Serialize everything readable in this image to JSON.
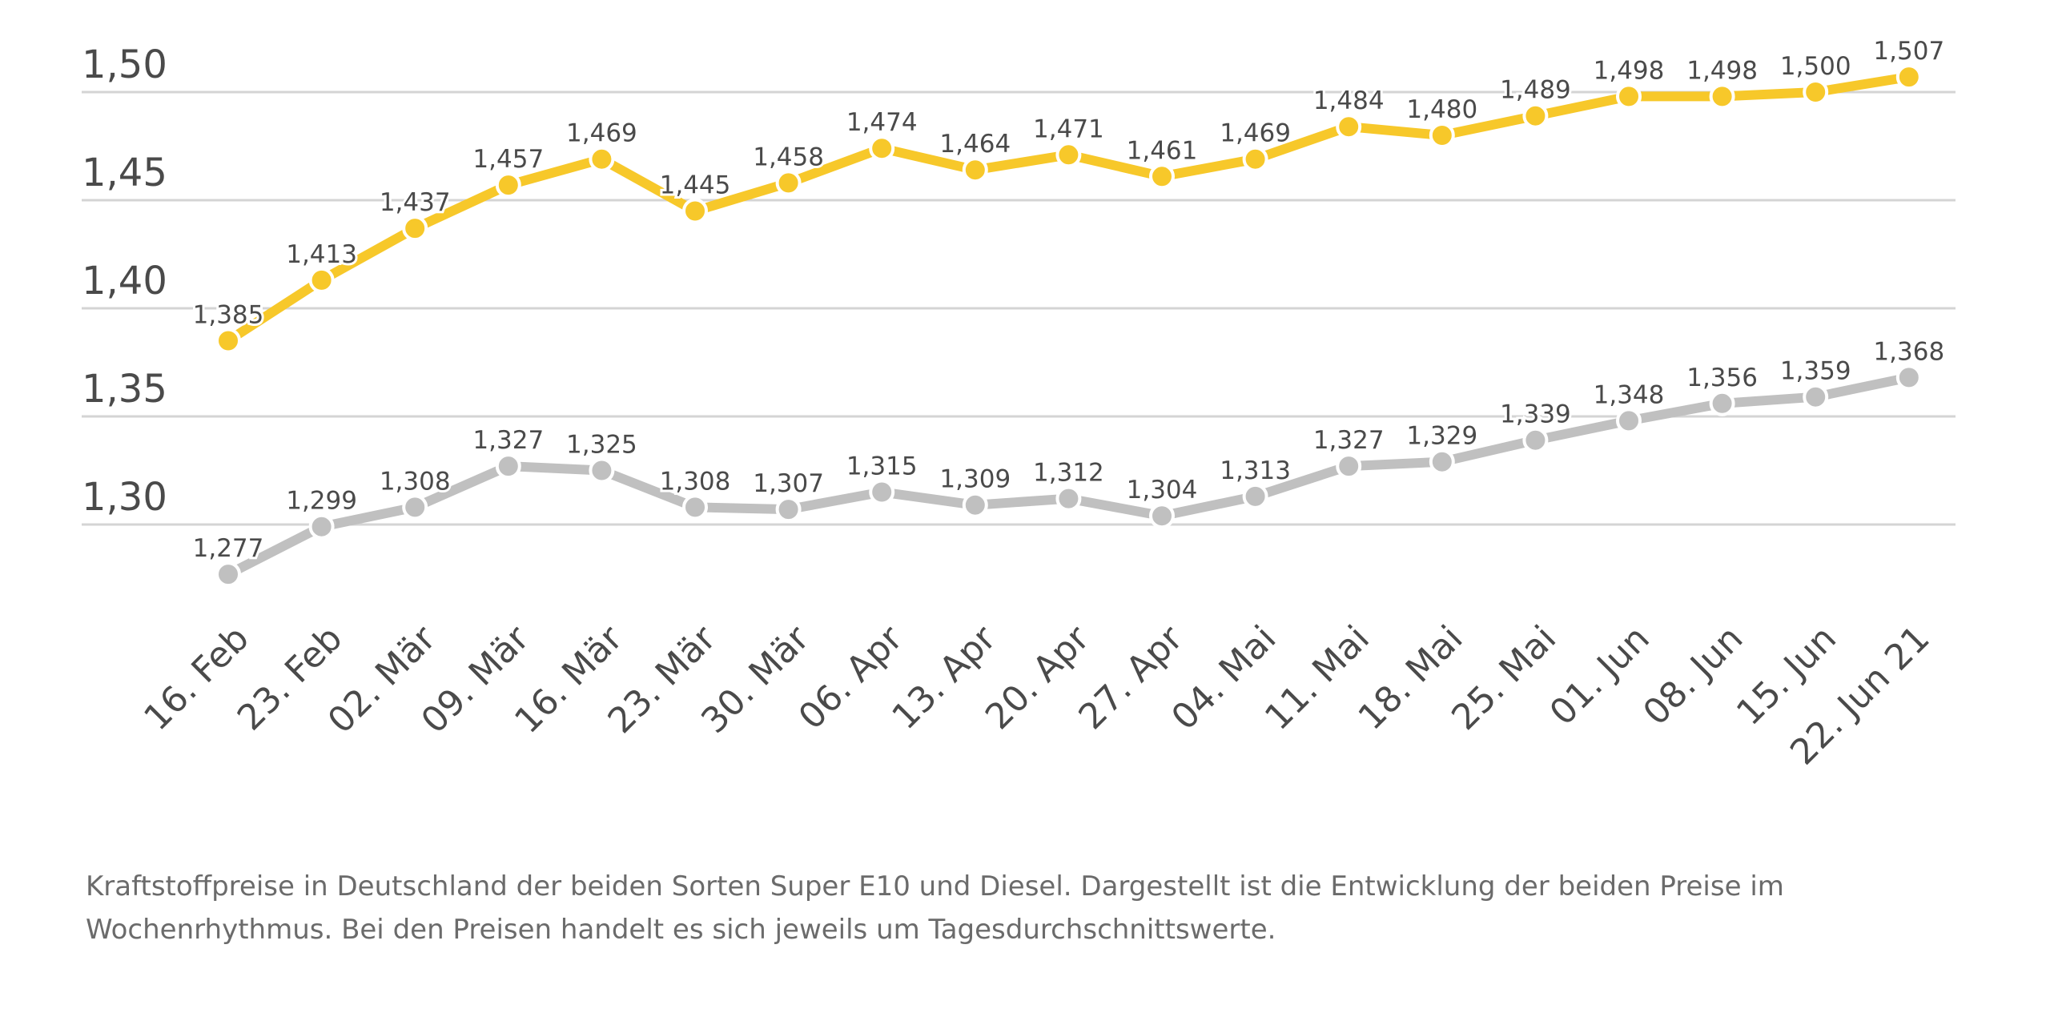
{
  "chart_data": {
    "type": "line",
    "categories": [
      "16. Feb",
      "23. Feb",
      "02. Mär",
      "09. Mär",
      "16. Mär",
      "23. Mär",
      "30. Mär",
      "06. Apr",
      "13. Apr",
      "20. Apr",
      "27. Apr",
      "04. Mai",
      "11. Mai",
      "18. Mai",
      "25. Mai",
      "01. Jun",
      "08. Jun",
      "15. Jun",
      "22. Jun 21"
    ],
    "series": [
      {
        "color": "#f7c82a",
        "values": [
          1.385,
          1.413,
          1.437,
          1.457,
          1.469,
          1.445,
          1.458,
          1.474,
          1.464,
          1.471,
          1.461,
          1.469,
          1.484,
          1.48,
          1.489,
          1.498,
          1.498,
          1.5,
          1.507
        ],
        "labels": [
          "1,385",
          "1,413",
          "1,437",
          "1,457",
          "1,469",
          "1,445",
          "1,458",
          "1,474",
          "1,464",
          "1,471",
          "1,461",
          "1,469",
          "1,484",
          "1,480",
          "1,489",
          "1,498",
          "1,498",
          "1,500",
          "1,507"
        ]
      },
      {
        "color": "#c0c0c0",
        "values": [
          1.277,
          1.299,
          1.308,
          1.327,
          1.325,
          1.308,
          1.307,
          1.315,
          1.309,
          1.312,
          1.304,
          1.313,
          1.327,
          1.329,
          1.339,
          1.348,
          1.356,
          1.359,
          1.368
        ],
        "labels": [
          "1,277",
          "1,299",
          "1,308",
          "1,327",
          "1,325",
          "1,308",
          "1,307",
          "1,315",
          "1,309",
          "1,312",
          "1,304",
          "1,313",
          "1,327",
          "1,329",
          "1,339",
          "1,348",
          "1,356",
          "1,359",
          "1,368"
        ]
      }
    ],
    "yticks": [
      1.3,
      1.35,
      1.4,
      1.45,
      1.5
    ],
    "ytick_labels": [
      "1,30",
      "1,35",
      "1,40",
      "1,45",
      "1,50"
    ],
    "ylim": [
      1.3,
      1.5
    ],
    "grid": true,
    "title": "",
    "xlabel": "",
    "ylabel": ""
  },
  "caption": "Kraftstoffpreise in Deutschland der beiden Sorten Super E10 und Diesel. Dargestellt ist die Entwicklung der beiden Preise im Wochenrhythmus. Bei den Preisen handelt es sich jeweils um Tagesdurchschnittswerte."
}
